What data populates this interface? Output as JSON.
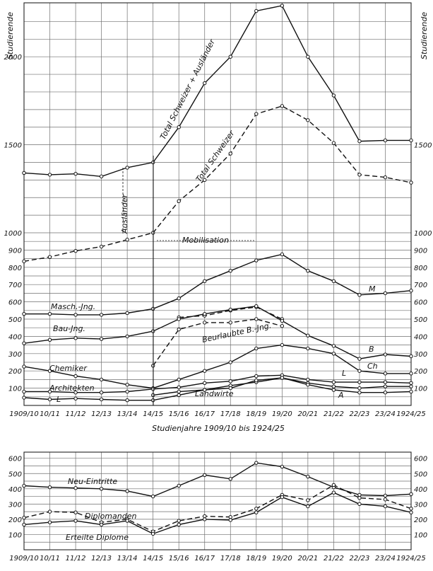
{
  "chart_data": [
    {
      "type": "line",
      "title": "",
      "ylabel": "Studierende",
      "xlabel": "Studienjahre 1909/10 bis 1924/25",
      "x": [
        "1909/10",
        "10/11",
        "11/12",
        "12/13",
        "13/14",
        "14/15",
        "15/16",
        "16/17",
        "17/18",
        "18/19",
        "19/20",
        "20/21",
        "21/22",
        "22/23",
        "23/24",
        "1924/25"
      ],
      "y_ticks_left": [
        "100",
        "200",
        "300",
        "400",
        "500",
        "600",
        "700",
        "800",
        "900",
        "1000",
        "1500",
        "2000"
      ],
      "y_ticks_right": [
        "100",
        "200",
        "300",
        "400",
        "500",
        "600",
        "700",
        "800",
        "900",
        "1000",
        "1500"
      ],
      "ylim": [
        0,
        2250
      ],
      "scale": "lower 0–1000 linear, upper 1000–2250 compressed",
      "grid": true,
      "series": [
        {
          "name": "Total Schweizer + Ausländer",
          "style": "solid",
          "values": [
            1340,
            1330,
            1335,
            1320,
            1370,
            1400,
            1600,
            1850,
            2000,
            2260,
            2290,
            2000,
            1780,
            1520,
            1525,
            1525
          ]
        },
        {
          "name": "Total Schweizer",
          "style": "dashed",
          "values": [
            835,
            860,
            895,
            920,
            960,
            1000,
            1180,
            1300,
            1450,
            1675,
            1720,
            1640,
            1510,
            1330,
            1315,
            1285
          ]
        },
        {
          "name": "Masch.-Jng.",
          "style": "solid",
          "values": [
            530,
            530,
            525,
            525,
            535,
            560,
            620,
            720,
            780,
            840,
            875,
            780,
            720,
            640,
            650,
            665
          ]
        },
        {
          "name": "Masch.-Jng. (Beurlaubte)",
          "style": "dashed",
          "values": [
            null,
            null,
            null,
            null,
            null,
            null,
            510,
            520,
            550,
            570,
            500,
            null,
            null,
            null,
            null,
            null
          ]
        },
        {
          "name": "Bau-Jng.",
          "style": "solid",
          "values": [
            360,
            380,
            390,
            385,
            400,
            430,
            500,
            530,
            555,
            575,
            490,
            405,
            345,
            270,
            295,
            285
          ]
        },
        {
          "name": "Beurlaubte B.-Jng.",
          "style": "dashed",
          "values": [
            null,
            null,
            null,
            null,
            null,
            230,
            440,
            480,
            480,
            500,
            460,
            null,
            null,
            null,
            null,
            null
          ]
        },
        {
          "name": "Chemiker",
          "style": "solid",
          "values": [
            225,
            200,
            170,
            150,
            120,
            100,
            150,
            200,
            250,
            330,
            350,
            330,
            300,
            200,
            185,
            185
          ]
        },
        {
          "name": "Architekten",
          "style": "solid",
          "values": [
            80,
            80,
            75,
            75,
            80,
            95,
            105,
            130,
            140,
            170,
            175,
            150,
            135,
            135,
            135,
            130
          ]
        },
        {
          "name": "L",
          "style": "solid",
          "values": [
            45,
            35,
            40,
            35,
            30,
            30,
            60,
            90,
            115,
            135,
            160,
            130,
            110,
            100,
            110,
            110
          ]
        },
        {
          "name": "Landwirte",
          "style": "solid",
          "values": [
            null,
            null,
            null,
            null,
            null,
            60,
            80,
            90,
            100,
            145,
            160,
            120,
            90,
            75,
            75,
            80
          ]
        }
      ],
      "annotations": [
        "Ausländer",
        "Mobilisation",
        "Total Schweizer + Ausländer",
        "Total Schweizer",
        "M",
        "B",
        "Ch",
        "L",
        "A",
        "Masch.-Jng.",
        "Bau-Jng.",
        "Beurlaubte B.-Jng.",
        "Chemiker",
        "Architekten",
        "L",
        "Landwirte"
      ]
    },
    {
      "type": "line",
      "x": [
        "1909/10",
        "10/11",
        "11/12",
        "12/13",
        "13/14",
        "14/15",
        "15/16",
        "16/17",
        "17/18",
        "18/19",
        "19/20",
        "20/21",
        "21/22",
        "22/23",
        "23/24",
        "1924/25"
      ],
      "y_ticks": [
        "100",
        "200",
        "300",
        "400",
        "500",
        "600"
      ],
      "ylim": [
        0,
        640
      ],
      "grid": true,
      "series": [
        {
          "name": "Neu-Eintritte",
          "style": "solid",
          "values": [
            420,
            410,
            405,
            400,
            385,
            350,
            420,
            490,
            465,
            570,
            545,
            480,
            410,
            360,
            355,
            365
          ]
        },
        {
          "name": "Diplomanden",
          "style": "dashed",
          "values": [
            210,
            250,
            245,
            180,
            200,
            120,
            190,
            220,
            215,
            270,
            360,
            325,
            425,
            340,
            330,
            270
          ]
        },
        {
          "name": "Erteilte Diplome",
          "style": "solid",
          "values": [
            165,
            180,
            190,
            165,
            190,
            105,
            165,
            200,
            195,
            245,
            345,
            285,
            375,
            300,
            285,
            245
          ]
        }
      ]
    }
  ],
  "labels": {
    "ylabel_left": "Studierende",
    "ylabel_right": "Studierende",
    "xlabel": "Studienjahre 1909/10 bis 1924/25",
    "total_all": "Total Schweizer + Ausländer",
    "total_swiss": "Total Schweizer",
    "auslaender": "Ausländer",
    "mobilisation": "Mobilisation",
    "masch": "Masch.-Jng.",
    "bau": "Bau-Jng.",
    "beurlaubte": "Beurlaubte B.-Jng.",
    "chemiker": "Chemiker",
    "architekten": "Architekten",
    "l_left": "L",
    "landwirte": "Landwirte",
    "m_right": "M",
    "b_right": "B",
    "ch_right": "Ch",
    "l_right": "L",
    "a_right": "A",
    "neu": "Neu-Eintritte",
    "diplomanden": "Diplomanden",
    "diplome": "Erteilte Diplome"
  }
}
